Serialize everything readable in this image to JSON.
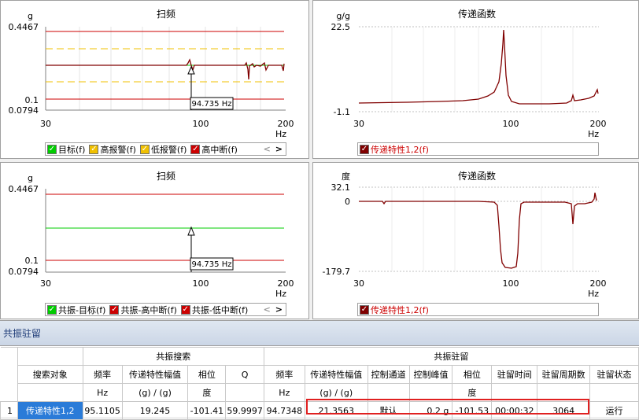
{
  "colors": {
    "accent": "#2a7bd8",
    "darkred": "#800000",
    "red": "#cc0000",
    "green": "#00cc00",
    "yellow": "#f0c000",
    "highlight": "#e02020"
  },
  "sweep1": {
    "title": "扫频",
    "y_unit": "g",
    "y_ticks": [
      "0.4467",
      "0.1",
      "0.0794"
    ],
    "x_ticks": [
      "30",
      "100",
      "200"
    ],
    "x_unit": "Hz",
    "marker": "94.735 Hz",
    "legend": [
      {
        "label": "目标(f)",
        "color": "#00cc00"
      },
      {
        "label": "高报警(f)",
        "color": "#f0c000"
      },
      {
        "label": "低报警(f)",
        "color": "#f0c000"
      },
      {
        "label": "高中断(f)",
        "color": "#cc0000"
      }
    ],
    "nav_prev": "<",
    "nav_next": ">"
  },
  "tf1": {
    "title": "传递函数",
    "y_unit": "g/g",
    "y_ticks": [
      "22.5",
      "-1.1"
    ],
    "x_ticks": [
      "30",
      "100",
      "200"
    ],
    "x_unit": "Hz",
    "legend": [
      {
        "label": "传递特性1,2(f)",
        "color": "#800000"
      }
    ]
  },
  "sweep2": {
    "title": "扫频",
    "y_unit": "g",
    "y_ticks": [
      "0.4467",
      "0.1",
      "0.0794"
    ],
    "x_ticks": [
      "30",
      "100",
      "200"
    ],
    "x_unit": "Hz",
    "marker": "94.735 Hz",
    "legend": [
      {
        "label": "共振-目标(f)",
        "color": "#00cc00"
      },
      {
        "label": "共振-高中断(f)",
        "color": "#cc0000"
      },
      {
        "label": "共振-低中断(f)",
        "color": "#cc0000"
      }
    ],
    "nav_prev": "<",
    "nav_next": ">"
  },
  "tf2": {
    "title": "传递函数",
    "y_unit": "度",
    "y_ticks": [
      "32.1",
      "0",
      "-179.7"
    ],
    "x_ticks": [
      "30",
      "100",
      "200"
    ],
    "x_unit": "Hz",
    "legend": [
      {
        "label": "传递特性1,2(f)",
        "color": "#800000"
      }
    ]
  },
  "dwell": {
    "section_title": "共振驻留",
    "group_search": "共振搜索",
    "group_dwell": "共振驻留",
    "headers": [
      "搜索对象",
      "频率",
      "传递特性幅值",
      "相位",
      "Q",
      "频率",
      "传递特性幅值",
      "控制通道",
      "控制峰值",
      "相位",
      "驻留时间",
      "驻留周期数",
      "驻留状态"
    ],
    "units": [
      "Hz",
      "(g) / (g)",
      "度",
      "Hz",
      "(g) / (g)",
      "度"
    ],
    "row": {
      "index": "1",
      "target": "传递特性1,2",
      "freq": "95.1105",
      "amp": "19.245",
      "phase": "-101.41",
      "q": "59.9997",
      "d_freq": "94.7348",
      "d_amp": "21.3563",
      "channel": "默认",
      "peak": "0.2 g",
      "d_phase": "-101.53",
      "time": "00:00:32",
      "cycles": "3064",
      "status": "运行"
    }
  }
}
